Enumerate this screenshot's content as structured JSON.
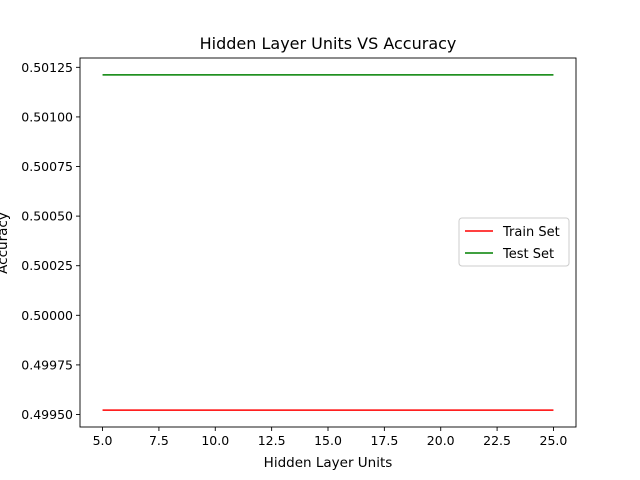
{
  "chart_data": {
    "type": "line",
    "title": "Hidden Layer Units VS Accuracy",
    "xlabel": "Hidden Layer Units",
    "ylabel": "Accuracy",
    "x": [
      5,
      10,
      15,
      20,
      25
    ],
    "series": [
      {
        "name": "Train Set",
        "color": "#ff0000",
        "values": [
          0.499522,
          0.499522,
          0.499522,
          0.499522,
          0.499522
        ]
      },
      {
        "name": "Test Set",
        "color": "#008000",
        "values": [
          0.501212,
          0.501212,
          0.501212,
          0.501212,
          0.501212
        ]
      }
    ],
    "xlim": [
      4.0,
      26.0
    ],
    "ylim": [
      0.499437,
      0.501297
    ],
    "xticks": [
      "5.0",
      "7.5",
      "10.0",
      "12.5",
      "15.0",
      "17.5",
      "20.0",
      "22.5",
      "25.0"
    ],
    "yticks": [
      "0.49950",
      "0.49975",
      "0.50000",
      "0.50025",
      "0.50050",
      "0.50075",
      "0.50100",
      "0.50125"
    ],
    "grid": false,
    "legend_position": "center-right"
  }
}
